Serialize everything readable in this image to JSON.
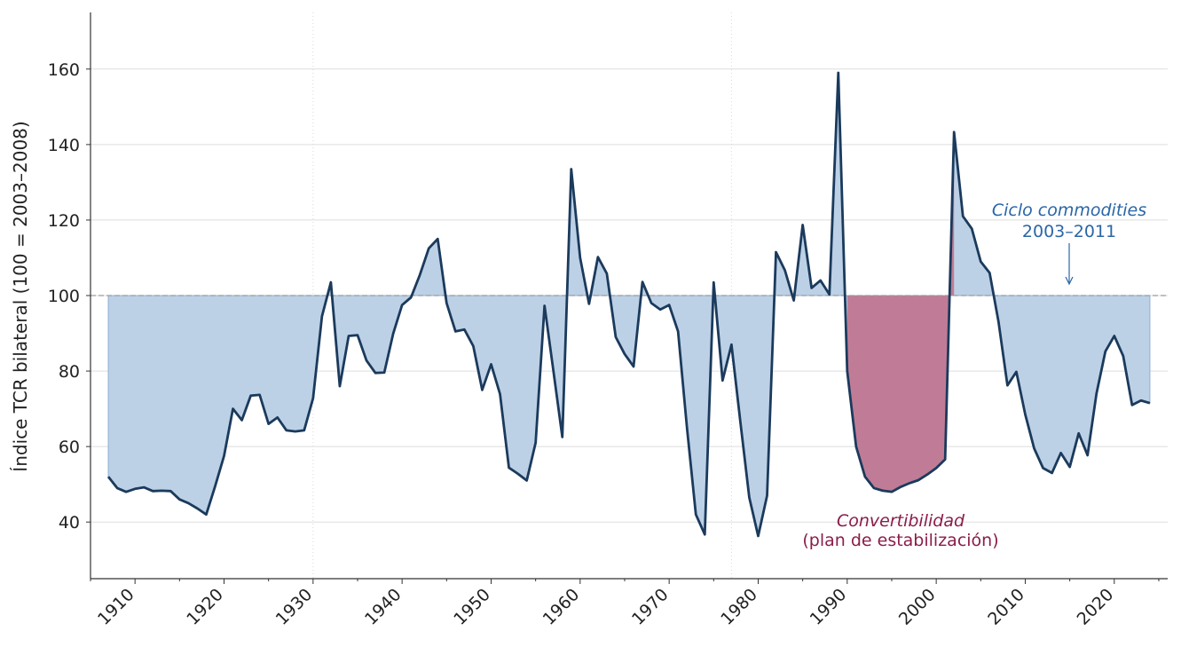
{
  "chart_data": {
    "type": "area",
    "title": "",
    "xlabel": "",
    "ylabel": "Índice TCR bilateral (100 = 2003–2008)",
    "xlim": [
      1905,
      2026
    ],
    "ylim": [
      25,
      175
    ],
    "x_ticks": [
      1910,
      1920,
      1930,
      1940,
      1950,
      1960,
      1970,
      1980,
      1990,
      2000,
      2010,
      2020
    ],
    "x_tick_labels": [
      "1910",
      "1920",
      "1930",
      "1940",
      "1950",
      "1960",
      "1970",
      "1980",
      "1990",
      "2000",
      "2010",
      "2020"
    ],
    "y_ticks": [
      40,
      60,
      80,
      100,
      120,
      140,
      160
    ],
    "y_tick_labels": [
      "40",
      "60",
      "80",
      "100",
      "120",
      "140",
      "160"
    ],
    "grid": "horizontal",
    "vertical_reference_lines": [
      1930,
      1977
    ],
    "baseline": 100,
    "highlight_range": [
      1990,
      2002
    ],
    "colors": {
      "line": "#1b3a5c",
      "fill": "#bdd1e6",
      "highlight_fill": "#c07c96",
      "baseline": "#9a9a9a",
      "annotation_blue": "#2a66a8",
      "annotation_red": "#8b1d4a"
    },
    "series": [
      {
        "x": [
          1907,
          1908,
          1909,
          1910,
          1911,
          1912,
          1913,
          1914,
          1915,
          1916,
          1917,
          1918,
          1919,
          1920,
          1921,
          1922,
          1923,
          1924,
          1925,
          1926,
          1927,
          1928,
          1929,
          1930,
          1931,
          1932,
          1933,
          1934,
          1935,
          1936,
          1937,
          1938,
          1939,
          1940,
          1941,
          1942,
          1943,
          1944,
          1945,
          1946,
          1947,
          1948,
          1949,
          1950,
          1951,
          1952,
          1953,
          1954,
          1955,
          1956,
          1957,
          1958,
          1959,
          1960,
          1961,
          1962,
          1963,
          1964,
          1965,
          1966,
          1967,
          1968,
          1969,
          1970,
          1971,
          1972,
          1973,
          1974,
          1975,
          1976,
          1977,
          1978,
          1979,
          1980,
          1981,
          1982,
          1983,
          1984,
          1985,
          1986,
          1987,
          1988,
          1989,
          1990,
          1991,
          1992,
          1993,
          1994,
          1995,
          1996,
          1997,
          1998,
          1999,
          2000,
          2001,
          2002,
          2003,
          2004,
          2005,
          2006,
          2007,
          2008,
          2009,
          2010,
          2011,
          2012,
          2013,
          2014,
          2015,
          2016,
          2017,
          2018,
          2019,
          2020,
          2021,
          2022,
          2023,
          2024
        ],
        "values": [
          52,
          49,
          48,
          48.8,
          49.2,
          48.2,
          48.3,
          48.2,
          46,
          45,
          43.6,
          42,
          49.5,
          57.5,
          70,
          67,
          73.5,
          73.7,
          66,
          67.7,
          64.3,
          64,
          64.3,
          72.8,
          94.5,
          103.5,
          76,
          89.3,
          89.5,
          82.8,
          79.5,
          79.6,
          89.9,
          97.5,
          99.5,
          105.5,
          112.5,
          115,
          98,
          90.5,
          91,
          86.6,
          75,
          81.8,
          73.9,
          54.4,
          52.8,
          51,
          61,
          97.3,
          80,
          62.5,
          133.5,
          110,
          97.8,
          110.2,
          105.8,
          89,
          84.5,
          81.2,
          103.6,
          98,
          96.3,
          97.5,
          90.5,
          65,
          42,
          36.7,
          103.5,
          77.5,
          87,
          66.5,
          46.5,
          36.3,
          47,
          111.5,
          106.7,
          98.7,
          118.7,
          102,
          104,
          100.3,
          159,
          80,
          60,
          52,
          49,
          48.3,
          48,
          49.3,
          50.3,
          51.1,
          52.6,
          54.3,
          56.6,
          143.3,
          121,
          117.7,
          109,
          106,
          93,
          76.2,
          79.8,
          68.5,
          59.5,
          54.3,
          53,
          58.3,
          54.6,
          63.5,
          57.7,
          74,
          85.2,
          89.3,
          84,
          71,
          72.2,
          71.5
        ]
      }
    ],
    "annotations": [
      {
        "line1": "Ciclo commodities",
        "line2": "2003–2011",
        "target_x": 2015,
        "target_y": 103
      },
      {
        "line1": "Convertibilidad",
        "line2": "(plan de estabilización)"
      }
    ]
  }
}
